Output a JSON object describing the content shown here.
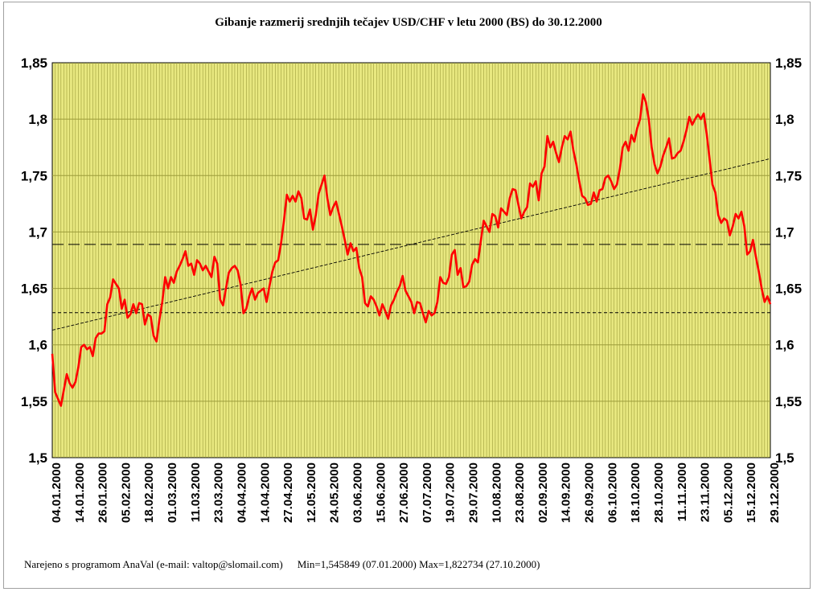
{
  "chart_data": {
    "type": "line",
    "title": "Gibanje razmerij srednjih tečajev USD/CHF v letu 2000 (BS) do 30.12.2000",
    "xlabel": "",
    "ylabel": "",
    "ylim": [
      1.5,
      1.85
    ],
    "y_ticks": [
      "1,5",
      "1,55",
      "1,6",
      "1,65",
      "1,7",
      "1,75",
      "1,8",
      "1,85"
    ],
    "x_ticks": [
      "04.01.2000",
      "14.01.2000",
      "26.01.2000",
      "05.02.2000",
      "18.02.2000",
      "01.03.2000",
      "11.03.2000",
      "23.03.2000",
      "04.04.2000",
      "14.04.2000",
      "27.04.2000",
      "12.05.2000",
      "24.05.2000",
      "03.06.2000",
      "15.06.2000",
      "27.06.2000",
      "07.07.2000",
      "19.07.2000",
      "29.07.2000",
      "10.08.2000",
      "23.08.2000",
      "02.09.2000",
      "14.09.2000",
      "26.09.2000",
      "06.10.2000",
      "18.10.2000",
      "28.10.2000",
      "11.11.2000",
      "23.11.2000",
      "05.12.2000",
      "15.12.2000",
      "29.12.2000"
    ],
    "grid": true,
    "background_color": "#e8e880",
    "series_color": "#ff0000",
    "series": [
      {
        "name": "",
        "values": [
          1.592,
          1.558,
          1.552,
          1.546,
          1.56,
          1.574,
          1.566,
          1.562,
          1.567,
          1.58,
          1.598,
          1.6,
          1.596,
          1.598,
          1.59,
          1.606,
          1.61,
          1.61,
          1.612,
          1.636,
          1.642,
          1.658,
          1.654,
          1.65,
          1.632,
          1.64,
          1.624,
          1.627,
          1.636,
          1.628,
          1.637,
          1.636,
          1.618,
          1.627,
          1.625,
          1.608,
          1.603,
          1.622,
          1.638,
          1.66,
          1.65,
          1.66,
          1.655,
          1.665,
          1.67,
          1.676,
          1.683,
          1.67,
          1.672,
          1.662,
          1.675,
          1.672,
          1.666,
          1.67,
          1.665,
          1.66,
          1.678,
          1.672,
          1.64,
          1.635,
          1.65,
          1.664,
          1.668,
          1.67,
          1.666,
          1.654,
          1.628,
          1.632,
          1.643,
          1.65,
          1.64,
          1.646,
          1.648,
          1.65,
          1.638,
          1.652,
          1.665,
          1.673,
          1.675,
          1.69,
          1.71,
          1.733,
          1.727,
          1.732,
          1.727,
          1.736,
          1.73,
          1.712,
          1.711,
          1.72,
          1.702,
          1.715,
          1.734,
          1.742,
          1.75,
          1.73,
          1.715,
          1.722,
          1.727,
          1.716,
          1.705,
          1.693,
          1.68,
          1.69,
          1.683,
          1.686,
          1.668,
          1.66,
          1.637,
          1.634,
          1.643,
          1.64,
          1.634,
          1.626,
          1.636,
          1.63,
          1.623,
          1.635,
          1.64,
          1.647,
          1.652,
          1.661,
          1.648,
          1.643,
          1.638,
          1.628,
          1.638,
          1.637,
          1.628,
          1.62,
          1.63,
          1.626,
          1.628,
          1.638,
          1.66,
          1.655,
          1.654,
          1.66,
          1.68,
          1.684,
          1.662,
          1.668,
          1.651,
          1.652,
          1.656,
          1.671,
          1.676,
          1.673,
          1.692,
          1.71,
          1.705,
          1.7,
          1.716,
          1.714,
          1.704,
          1.721,
          1.718,
          1.715,
          1.73,
          1.738,
          1.737,
          1.724,
          1.712,
          1.718,
          1.722,
          1.743,
          1.74,
          1.745,
          1.728,
          1.752,
          1.758,
          1.785,
          1.775,
          1.78,
          1.77,
          1.762,
          1.775,
          1.785,
          1.782,
          1.789,
          1.772,
          1.76,
          1.745,
          1.732,
          1.73,
          1.724,
          1.725,
          1.735,
          1.727,
          1.737,
          1.738,
          1.748,
          1.75,
          1.745,
          1.738,
          1.742,
          1.756,
          1.775,
          1.78,
          1.772,
          1.786,
          1.78,
          1.792,
          1.8,
          1.822,
          1.815,
          1.8,
          1.775,
          1.76,
          1.752,
          1.758,
          1.768,
          1.775,
          1.783,
          1.765,
          1.766,
          1.77,
          1.772,
          1.78,
          1.79,
          1.802,
          1.795,
          1.8,
          1.804,
          1.8,
          1.805,
          1.787,
          1.765,
          1.742,
          1.735,
          1.715,
          1.708,
          1.712,
          1.71,
          1.697,
          1.705,
          1.716,
          1.712,
          1.718,
          1.705,
          1.68,
          1.683,
          1.693,
          1.678,
          1.665,
          1.65,
          1.638,
          1.643,
          1.636
        ]
      }
    ],
    "min_level": 1.6285,
    "mean_level": 1.689,
    "trend_start": 1.613,
    "trend_end": 1.765,
    "footer": {
      "credit": "Narejeno s programom AnaVal (e-mail: valtop@slomail.com)",
      "stats": "Min=1,545849 (07.01.2000) Max=1,822734 (27.10.2000)"
    }
  }
}
